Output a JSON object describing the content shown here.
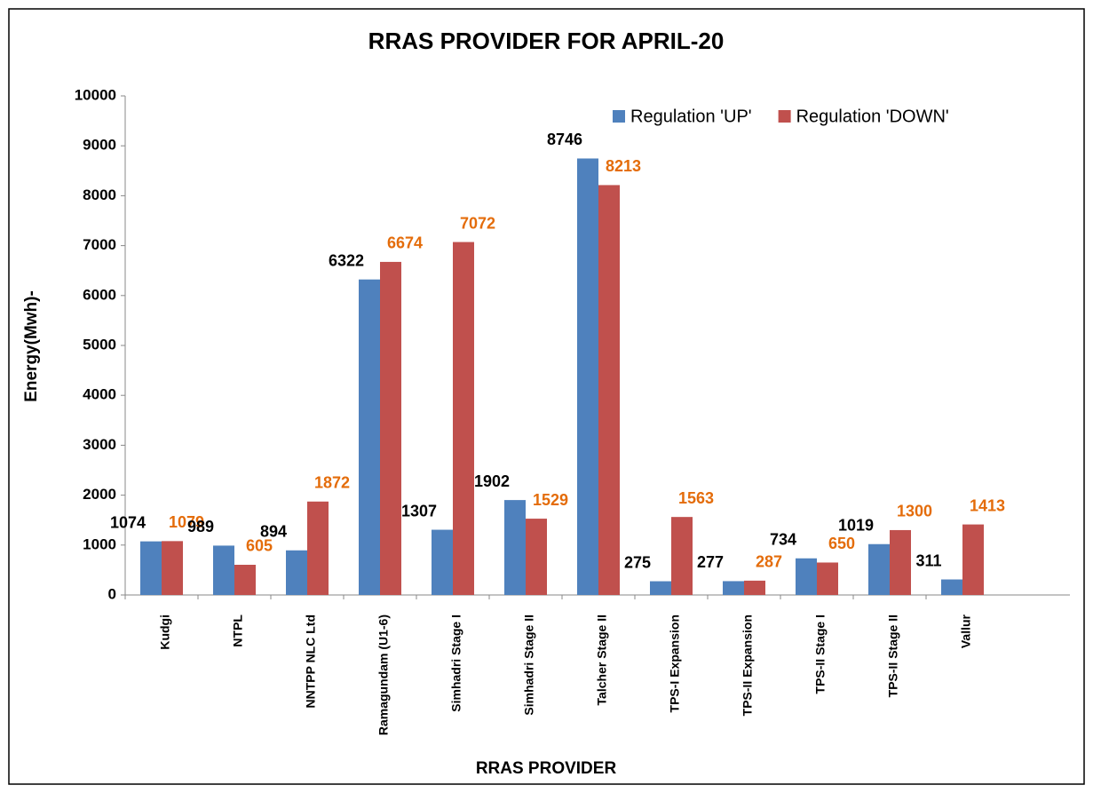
{
  "chart_data": {
    "type": "bar",
    "title": "RRAS PROVIDER FOR APRIL-20",
    "x_label": "RRAS PROVIDER",
    "y_label": "Energy(Mwh)-",
    "categories": [
      "Kudgi",
      "NTPL",
      "NNTPP NLC Ltd",
      "Ramagundam (U1-6)",
      "Simhadri  Stage I",
      "Simhadri Stage II",
      "Talcher Stage II",
      "TPS-I Expansion",
      "TPS-II Expansion",
      "TPS-II Stage I",
      "TPS-II Stage II",
      "Vallur"
    ],
    "series": [
      {
        "name": "Regulation 'UP'",
        "color": "#4f81bd",
        "label_color": "#000000",
        "values": [
          1074,
          989,
          894,
          6322,
          1307,
          1902,
          8746,
          275,
          277,
          734,
          1019,
          311
        ]
      },
      {
        "name": "Regulation 'DOWN'",
        "color": "#c0504d",
        "label_color": "#e46c0a",
        "values": [
          1079,
          605,
          1872,
          6674,
          7072,
          1529,
          8213,
          1563,
          287,
          650,
          1300,
          1413
        ]
      }
    ],
    "ylim": [
      0,
      10000
    ],
    "yticks": [
      0,
      1000,
      2000,
      3000,
      4000,
      5000,
      6000,
      7000,
      8000,
      9000,
      10000
    ],
    "grid": false,
    "legend": "top-right"
  }
}
